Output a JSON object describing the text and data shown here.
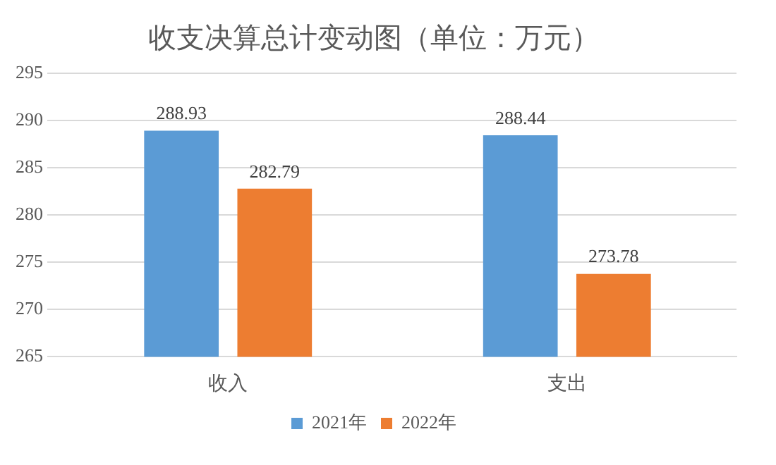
{
  "chart_data": {
    "type": "bar",
    "title": "收支决算总计变动图（单位：万元）",
    "categories": [
      "收入",
      "支出"
    ],
    "series": [
      {
        "name": "2021年",
        "color": "#5b9bd5",
        "values": [
          288.93,
          288.44
        ]
      },
      {
        "name": "2022年",
        "color": "#ed7d31",
        "values": [
          282.79,
          273.78
        ]
      }
    ],
    "ylim": [
      265,
      295
    ],
    "yticks": [
      265,
      270,
      275,
      280,
      285,
      290,
      295
    ],
    "grid": "y",
    "legend": "bottom",
    "data_labels": true
  }
}
